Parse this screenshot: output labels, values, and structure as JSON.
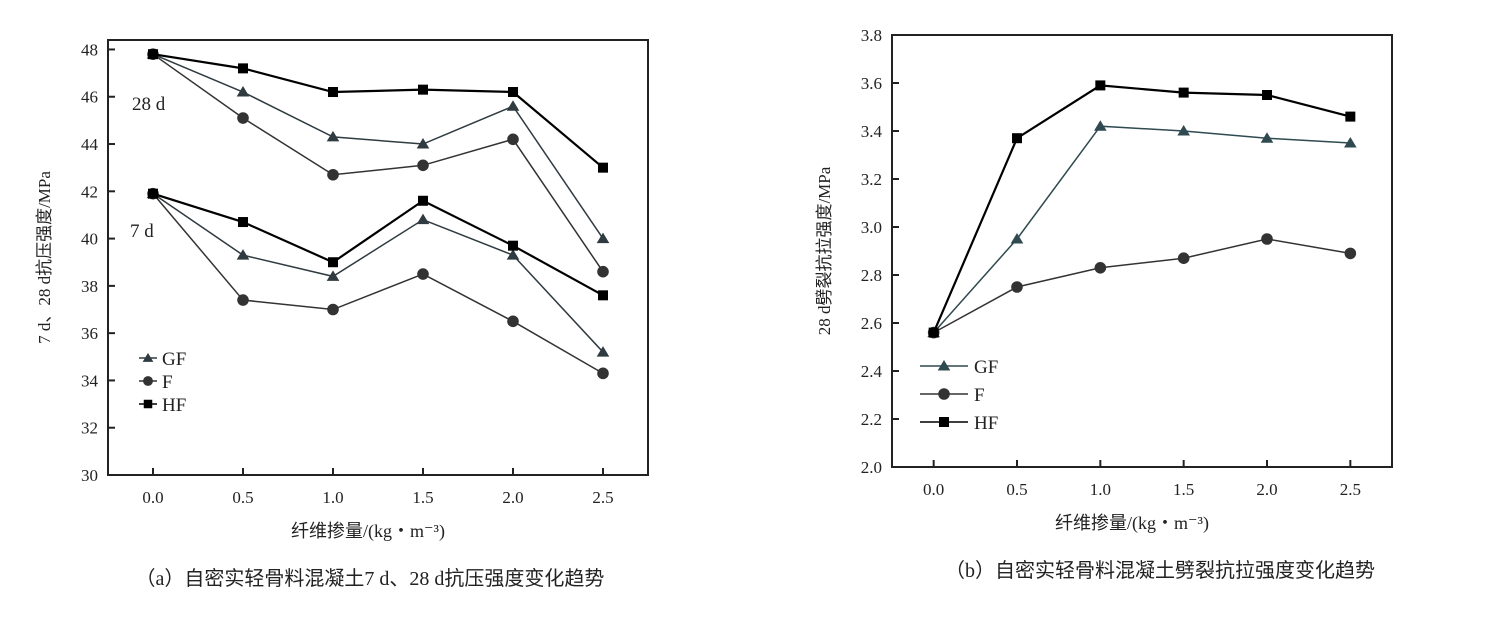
{
  "chart_data": [
    {
      "type": "line",
      "caption": "（a）自密实轻骨料混凝土7 d、28 d抗压强度变化趋势",
      "xlabel": "纤维掺量/(kg・m⁻³)",
      "ylabel": "7 d、28 d抗压强度/MPa",
      "x": [
        0.0,
        0.5,
        1.0,
        1.5,
        2.0,
        2.5
      ],
      "xticks": [
        "0.0",
        "0.5",
        "1.0",
        "1.5",
        "2.0",
        "2.5"
      ],
      "yticks": [
        "30",
        "32",
        "34",
        "36",
        "38",
        "40",
        "42",
        "44",
        "46",
        "48"
      ],
      "xlim": [
        -0.25,
        2.75
      ],
      "ylim": [
        30,
        48.4
      ],
      "grid": false,
      "legend": "bottom-left",
      "annotations": [
        {
          "text": "28 d",
          "x": 0.0,
          "y": 46.3
        },
        {
          "text": "7 d",
          "x": 0.0,
          "y": 40.0
        }
      ],
      "series": [
        {
          "name": "GF",
          "group": "28 d",
          "marker": "triangle",
          "color": "#2f3b40",
          "values": [
            47.8,
            46.2,
            44.3,
            44.0,
            45.6,
            40.0
          ]
        },
        {
          "name": "F",
          "group": "28 d",
          "marker": "circle",
          "color": "#333333",
          "values": [
            47.8,
            45.1,
            42.7,
            43.1,
            44.2,
            38.6
          ]
        },
        {
          "name": "HF",
          "group": "28 d",
          "marker": "square",
          "color": "#000000",
          "values": [
            47.8,
            47.2,
            46.2,
            46.3,
            46.2,
            43.0
          ]
        },
        {
          "name": "GF",
          "group": "7 d",
          "marker": "triangle",
          "color": "#2f3b40",
          "values": [
            41.9,
            39.3,
            38.4,
            40.8,
            39.3,
            35.2
          ]
        },
        {
          "name": "F",
          "group": "7 d",
          "marker": "circle",
          "color": "#333333",
          "values": [
            41.9,
            37.4,
            37.0,
            38.5,
            36.5,
            34.3
          ]
        },
        {
          "name": "HF",
          "group": "7 d",
          "marker": "square",
          "color": "#000000",
          "values": [
            41.9,
            40.7,
            39.0,
            41.6,
            39.7,
            37.6
          ]
        }
      ],
      "legend_entries": [
        {
          "label": "GF",
          "marker": "triangle"
        },
        {
          "label": "F",
          "marker": "circle"
        },
        {
          "label": "HF",
          "marker": "square"
        }
      ]
    },
    {
      "type": "line",
      "caption": "（b）自密实轻骨料混凝土劈裂抗拉强度变化趋势",
      "xlabel": "纤维掺量/(kg・m⁻³)",
      "ylabel": "28 d劈裂抗拉强度/MPa",
      "x": [
        0.0,
        0.5,
        1.0,
        1.5,
        2.0,
        2.5
      ],
      "xticks": [
        "0.0",
        "0.5",
        "1.0",
        "1.5",
        "2.0",
        "2.5"
      ],
      "yticks": [
        "2.0",
        "2.2",
        "2.4",
        "2.6",
        "2.8",
        "3.0",
        "3.2",
        "3.4",
        "3.6",
        "3.8"
      ],
      "xlim": [
        -0.25,
        2.75
      ],
      "ylim": [
        2.0,
        3.8
      ],
      "grid": false,
      "legend": "bottom-left",
      "annotations": [],
      "series": [
        {
          "name": "GF",
          "marker": "triangle",
          "color": "#2f4a50",
          "values": [
            2.56,
            2.95,
            3.42,
            3.4,
            3.37,
            3.35
          ]
        },
        {
          "name": "F",
          "marker": "circle",
          "color": "#333333",
          "values": [
            2.56,
            2.75,
            2.83,
            2.87,
            2.95,
            2.89
          ]
        },
        {
          "name": "HF",
          "marker": "square",
          "color": "#000000",
          "values": [
            2.56,
            3.37,
            3.59,
            3.56,
            3.55,
            3.46
          ]
        }
      ],
      "legend_entries": [
        {
          "label": "GF",
          "marker": "triangle"
        },
        {
          "label": "F",
          "marker": "circle"
        },
        {
          "label": "HF",
          "marker": "square"
        }
      ]
    }
  ]
}
